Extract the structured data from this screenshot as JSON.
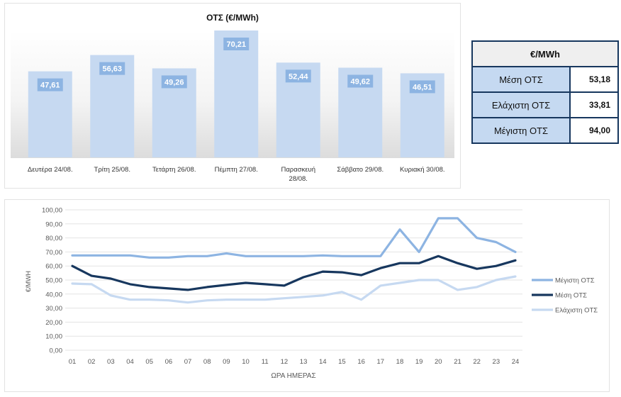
{
  "chart_data": [
    {
      "type": "bar",
      "title": "ΟΤΣ (€/MWh)",
      "categories": [
        "Δευτέρα 24/08.",
        "Τρίτη 25/08.",
        "Τετάρτη 26/08.",
        "Πέμπτη 27/08.",
        "Παρασκευή 28/08.",
        "Σάββατο 29/08.",
        "Κυριακή 30/08."
      ],
      "values": [
        47.61,
        56.63,
        49.26,
        70.21,
        52.44,
        49.62,
        46.51
      ],
      "data_labels": [
        "47,61",
        "56,63",
        "49,26",
        "70,21",
        "52,44",
        "49,62",
        "46,51"
      ],
      "colors": {
        "bar": "#c6d9f1",
        "label_bg": "#8db4e2",
        "label_text": "#ffffff"
      }
    },
    {
      "type": "line",
      "xlabel": "ΩΡΑ ΗΜΕΡΑΣ",
      "ylabel": "€/MWH",
      "ylim": [
        0,
        100
      ],
      "yticks": [
        "0,00",
        "10,00",
        "20,00",
        "30,00",
        "40,00",
        "50,00",
        "60,00",
        "70,00",
        "80,00",
        "90,00",
        "100,00"
      ],
      "x": [
        "01",
        "02",
        "03",
        "04",
        "05",
        "06",
        "07",
        "08",
        "09",
        "10",
        "11",
        "12",
        "13",
        "14",
        "15",
        "16",
        "17",
        "18",
        "19",
        "20",
        "21",
        "22",
        "23",
        "24"
      ],
      "grid": true,
      "legend": "right",
      "series": [
        {
          "name": "Μέγιστη ΟΤΣ",
          "color": "#8db4e2",
          "values": [
            67.5,
            67.5,
            67.5,
            67.5,
            66,
            66,
            67,
            67,
            69,
            67,
            67,
            67,
            67,
            67.5,
            67,
            67,
            67,
            86,
            70,
            94,
            94,
            80,
            77,
            70
          ]
        },
        {
          "name": "Μέση ΟΤΣ",
          "color": "#17375e",
          "values": [
            60,
            53,
            51,
            47,
            45,
            44,
            43,
            45,
            46.5,
            48,
            47,
            46,
            52,
            56,
            55.5,
            53.5,
            58.5,
            62,
            62,
            67,
            62,
            58,
            60,
            64
          ]
        },
        {
          "name": "Ελάχιστη ΟΤΣ",
          "color": "#c6d9f1",
          "values": [
            47.5,
            47,
            39,
            36,
            36,
            35.5,
            34,
            35.5,
            36,
            36,
            36,
            37,
            38,
            39,
            41.5,
            36,
            46,
            48,
            50,
            50,
            43,
            45,
            50,
            52.5
          ]
        }
      ]
    }
  ],
  "stats_table": {
    "header": "€/MWh",
    "rows": [
      {
        "label": "Μέση ΟΤΣ",
        "value": "53,18"
      },
      {
        "label": "Ελάχιστη ΟΤΣ",
        "value": "33,81"
      },
      {
        "label": "Μέγιστη ΟΤΣ",
        "value": "94,00"
      }
    ]
  }
}
